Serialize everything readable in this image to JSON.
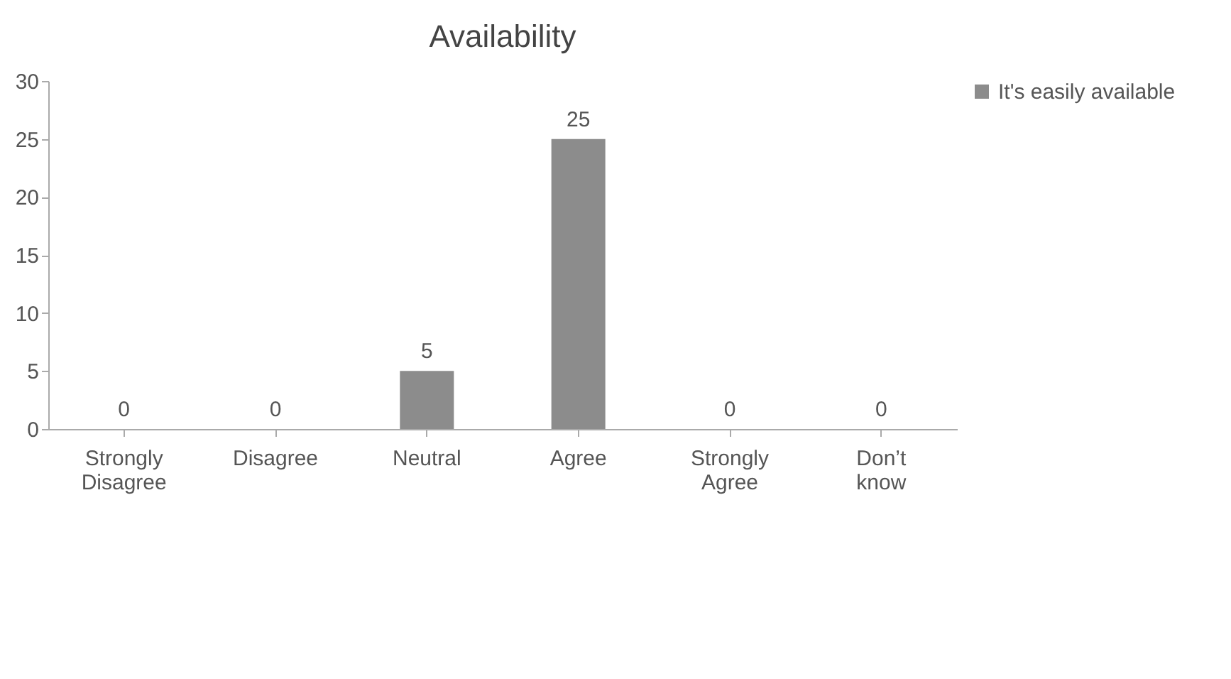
{
  "chart_data": {
    "type": "bar",
    "title": "Availability",
    "categories": [
      "Strongly Disagree",
      "Disagree",
      "Neutral",
      "Agree",
      "Strongly Agree",
      "Don’t know"
    ],
    "series": [
      {
        "name": "It's easily available",
        "color": "#8c8c8c",
        "values": [
          0,
          0,
          5,
          25,
          0,
          0
        ]
      }
    ],
    "ylim": [
      0,
      30
    ],
    "yticks": [
      0,
      5,
      10,
      15,
      20,
      25,
      30
    ],
    "data_labels": true,
    "legend": "right",
    "grid": false
  }
}
